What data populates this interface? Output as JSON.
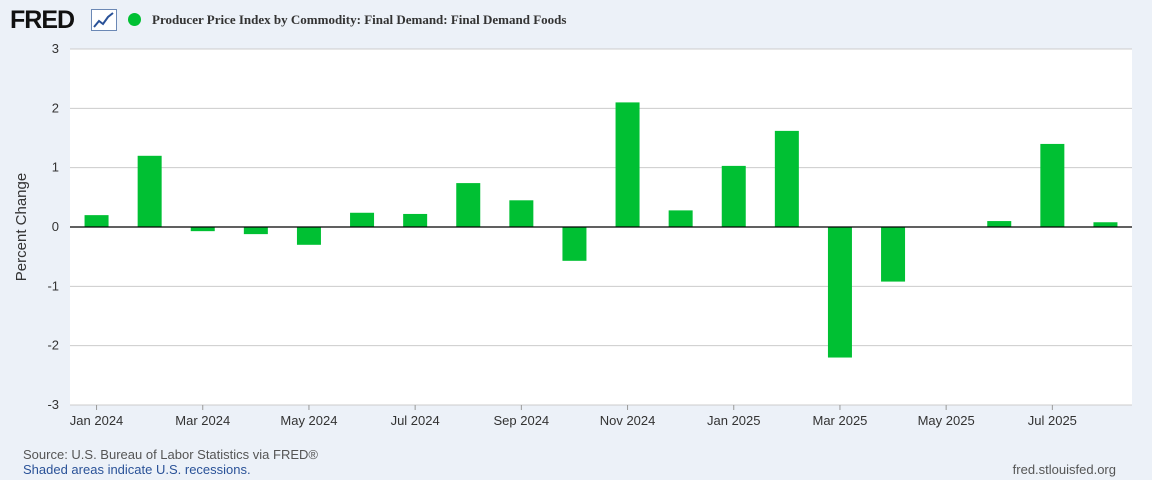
{
  "header": {
    "logo_text": "FRED",
    "series_title": "Producer Price Index by Commodity: Final Demand: Final Demand Foods"
  },
  "colors": {
    "bar": "#00c033",
    "background": "#ecf1f8",
    "plot": "#ffffff",
    "grid": "#cccccc"
  },
  "chart_data": {
    "type": "bar",
    "title": "Producer Price Index by Commodity: Final Demand: Final Demand Foods",
    "ylabel": "Percent Change",
    "xlabel": "",
    "ylim": [
      -3,
      3
    ],
    "yticks": [
      3,
      2,
      1,
      0,
      -1,
      -2,
      -3
    ],
    "xtick_labels": [
      "Jan 2024",
      "Mar 2024",
      "May 2024",
      "Jul 2024",
      "Sep 2024",
      "Nov 2024",
      "Jan 2025",
      "Mar 2025",
      "May 2025",
      "Jul 2025"
    ],
    "categories": [
      "Jan 2024",
      "Feb 2024",
      "Mar 2024",
      "Apr 2024",
      "May 2024",
      "Jun 2024",
      "Jul 2024",
      "Aug 2024",
      "Sep 2024",
      "Oct 2024",
      "Nov 2024",
      "Dec 2024",
      "Jan 2025",
      "Feb 2025",
      "Mar 2025",
      "Apr 2025",
      "May 2025",
      "Jun 2025",
      "Jul 2025",
      "Aug 2025"
    ],
    "values": [
      0.2,
      1.2,
      -0.07,
      -0.12,
      -0.3,
      0.24,
      0.22,
      0.74,
      0.45,
      -0.57,
      2.1,
      0.28,
      1.03,
      1.62,
      -2.2,
      -0.92,
      0.0,
      0.1,
      1.4,
      0.08
    ],
    "grid": true,
    "legend": "top-left"
  },
  "footer": {
    "source": "Source: U.S. Bureau of Labor Statistics via FRED®",
    "recessions": "Shaded areas indicate U.S. recessions.",
    "url": "fred.stlouisfed.org"
  }
}
